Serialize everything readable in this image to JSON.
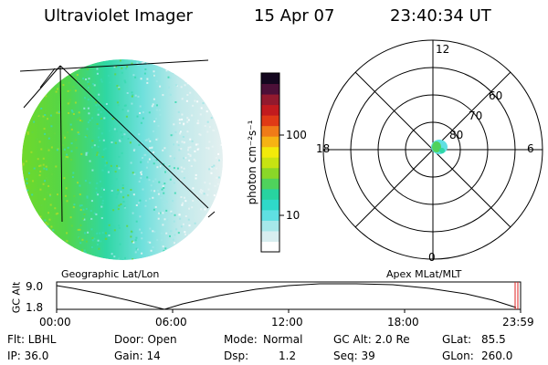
{
  "header": {
    "title": "Ultraviolet Imager",
    "date": "15 Apr 07",
    "time": "23:40:34 UT"
  },
  "imager": {
    "label": "Geographic Lat/Lon"
  },
  "colorbar": {
    "unit_label": "photon cm⁻²s⁻¹",
    "ticks": [
      "100",
      "10"
    ],
    "colors": [
      "#ffffff",
      "#d8eef0",
      "#a6e8ea",
      "#5fe0e2",
      "#2fd9c9",
      "#28d3a0",
      "#4fd25c",
      "#8ad728",
      "#c7e312",
      "#f2ea0a",
      "#f6b313",
      "#f07b18",
      "#e03a16",
      "#c21b1e",
      "#921a2e",
      "#4c1038",
      "#14071f"
    ]
  },
  "polar": {
    "label": "Apex MLat/MLT",
    "mlt_labels": {
      "top": "12",
      "bottom": "0",
      "left": "18",
      "right": "6"
    },
    "lat_labels": [
      "60",
      "70",
      "80"
    ]
  },
  "timeline": {
    "ylabel": "GC Alt",
    "y_ticks": [
      "9.0",
      "1.8"
    ],
    "x_ticks": [
      "00:00",
      "06:00",
      "12:00",
      "18:00",
      "23:59"
    ]
  },
  "footer": {
    "row1": {
      "flt": "Flt: LBHL",
      "door": "Door: Open",
      "mode_label": "Mode:",
      "mode_value": "Normal",
      "gc_alt": "GC Alt: 2.0 Re",
      "glat_label": "GLat:",
      "glat_value": "85.5"
    },
    "row2": {
      "ip": "IP: 36.0",
      "gain": "Gain: 14",
      "dsp_label": "Dsp:",
      "dsp_value": "1.2",
      "seq": "Seq: 39",
      "glon_label": "GLon:",
      "glon_value": "260.0"
    }
  }
}
